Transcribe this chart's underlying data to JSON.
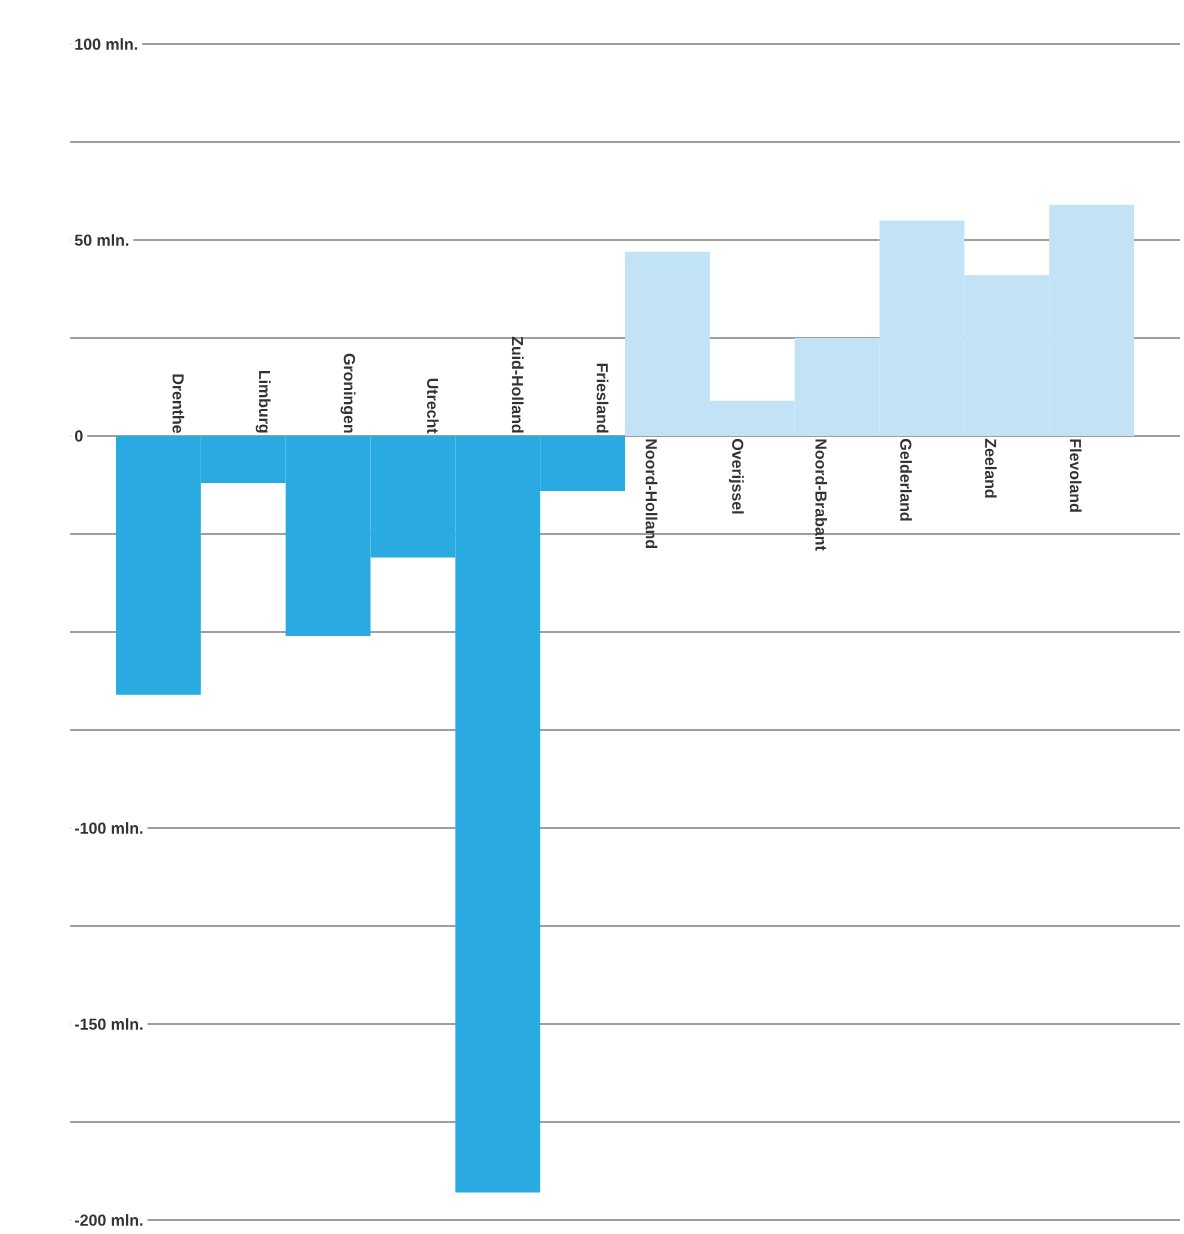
{
  "chart_data": {
    "type": "bar",
    "categories": [
      "Drenthe",
      "Limburg",
      "Groningen",
      "Utrecht",
      "Zuid-Holland",
      "Friesland",
      "Noord-Holland",
      "Overijssel",
      "Noord-Brabant",
      "Gelderland",
      "Zeeland",
      "Flevoland"
    ],
    "values": [
      -66,
      -12,
      -51,
      -31,
      -193,
      -14,
      47,
      9,
      25,
      55,
      41,
      59
    ],
    "colors": [
      "#29abe2",
      "#29abe2",
      "#29abe2",
      "#29abe2",
      "#29abe2",
      "#29abe2",
      "#c2e3f5",
      "#c2e3f5",
      "#c2e3f5",
      "#c2e3f5",
      "#c2e3f5",
      "#c2e3f5"
    ],
    "ylim": [
      -200,
      100
    ],
    "yticks": [
      {
        "value": 100,
        "label": "100 mln."
      },
      {
        "value": 75,
        "label": null
      },
      {
        "value": 50,
        "label": "50 mln."
      },
      {
        "value": 25,
        "label": null
      },
      {
        "value": 0,
        "label": "0"
      },
      {
        "value": -25,
        "label": null
      },
      {
        "value": -50,
        "label": null
      },
      {
        "value": -75,
        "label": null
      },
      {
        "value": -100,
        "label": "-100 mln."
      },
      {
        "value": -125,
        "label": null
      },
      {
        "value": -150,
        "label": "-150 mln."
      },
      {
        "value": -175,
        "label": null
      },
      {
        "value": -200,
        "label": "-200 mln."
      }
    ],
    "grid": "y"
  }
}
